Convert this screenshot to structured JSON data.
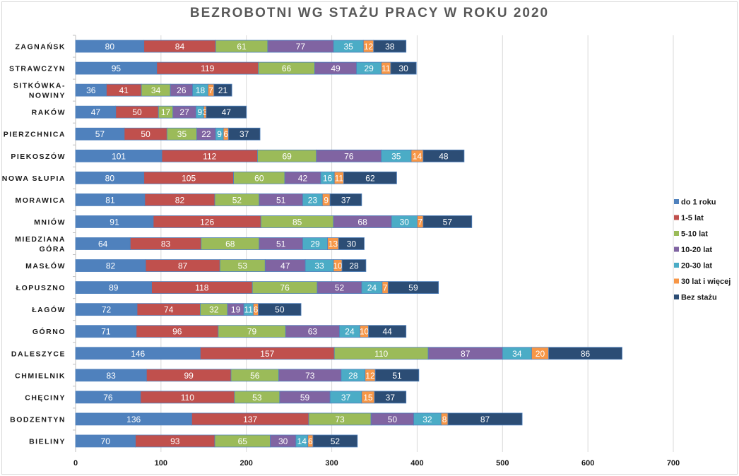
{
  "chart_data": {
    "type": "bar",
    "orientation": "horizontal",
    "stacked": true,
    "title": "BEZROBOTNI WG STAŻU PRACY W ROKU 2020",
    "xlabel": "",
    "ylabel": "",
    "xlim": [
      0,
      700
    ],
    "xticks": [
      0,
      100,
      200,
      300,
      400,
      500,
      600,
      700
    ],
    "grid": true,
    "legend_position": "right",
    "categories": [
      "ZAGNAŃSK",
      "STRAWCZYN",
      "SITKÓWKA-NOWINY",
      "RAKÓW",
      "PIERZCHNICA",
      "PIEKOSZÓW",
      "NOWA SŁUPIA",
      "MORAWICA",
      "MNIÓW",
      "MIEDZIANA GÓRA",
      "MASŁÓW",
      "ŁOPUSZNO",
      "ŁAGÓW",
      "GÓRNO",
      "DALESZYCE",
      "CHMIELNIK",
      "CHĘCINY",
      "BODZENTYN",
      "BIELINY"
    ],
    "category_lines": [
      [
        "ZAGNAŃSK"
      ],
      [
        "STRAWCZYN"
      ],
      [
        "SITKÓWKA-",
        "NOWINY"
      ],
      [
        "RAKÓW"
      ],
      [
        "PIERZCHNICA"
      ],
      [
        "PIEKOSZÓW"
      ],
      [
        "NOWA SŁUPIA"
      ],
      [
        "MORAWICA"
      ],
      [
        "MNIÓW"
      ],
      [
        "MIEDZIANA",
        "GÓRA"
      ],
      [
        "MASŁÓW"
      ],
      [
        "ŁOPUSZNO"
      ],
      [
        "ŁAGÓW"
      ],
      [
        "GÓRNO"
      ],
      [
        "DALESZYCE"
      ],
      [
        "CHMIELNIK"
      ],
      [
        "CHĘCINY"
      ],
      [
        "BODZENTYN"
      ],
      [
        "BIELINY"
      ]
    ],
    "series": [
      {
        "name": "do 1 roku",
        "color": "#4f81bd",
        "values": [
          80,
          95,
          36,
          47,
          57,
          101,
          80,
          81,
          91,
          64,
          82,
          89,
          72,
          71,
          146,
          83,
          76,
          136,
          70
        ]
      },
      {
        "name": "1-5 lat",
        "color": "#c0504d",
        "values": [
          84,
          119,
          41,
          50,
          50,
          112,
          105,
          82,
          126,
          83,
          87,
          118,
          74,
          96,
          157,
          99,
          110,
          137,
          93
        ]
      },
      {
        "name": "5-10 lat",
        "color": "#9bbb59",
        "values": [
          61,
          66,
          34,
          17,
          35,
          69,
          60,
          52,
          85,
          68,
          53,
          76,
          32,
          79,
          110,
          56,
          53,
          73,
          65
        ]
      },
      {
        "name": "10-20 lat",
        "color": "#8064a2",
        "values": [
          77,
          49,
          26,
          27,
          22,
          76,
          42,
          51,
          68,
          51,
          47,
          52,
          19,
          63,
          87,
          73,
          59,
          50,
          30
        ]
      },
      {
        "name": "20-30 lat",
        "color": "#4bacc6",
        "values": [
          35,
          29,
          18,
          9,
          9,
          35,
          16,
          23,
          30,
          29,
          33,
          24,
          11,
          24,
          34,
          28,
          37,
          32,
          14
        ]
      },
      {
        "name": "30 lat i więcej",
        "color": "#f79646",
        "values": [
          12,
          11,
          7,
          3,
          6,
          14,
          11,
          9,
          7,
          13,
          10,
          7,
          6,
          10,
          20,
          12,
          15,
          8,
          6
        ]
      },
      {
        "name": "Bez stażu",
        "color": "#2c4d75",
        "values": [
          38,
          30,
          21,
          47,
          37,
          48,
          62,
          37,
          57,
          30,
          28,
          59,
          50,
          44,
          86,
          51,
          37,
          87,
          52
        ]
      }
    ]
  }
}
